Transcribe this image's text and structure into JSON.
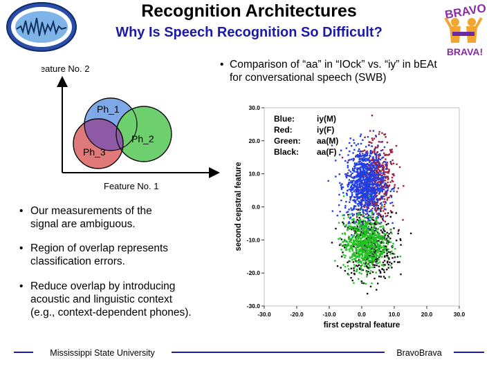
{
  "slide": {
    "title": "Recognition Architectures",
    "subtitle": "Why Is Speech Recognition So Difficult?",
    "logo_right_top": "BRAVO",
    "logo_right_bottom": "BRAVA!"
  },
  "venn": {
    "y_axis_label": "Feature No. 2",
    "x_axis_label": "Feature No. 1",
    "circles": [
      {
        "label": "Ph_1",
        "color": "#7fa8e6"
      },
      {
        "label": "Ph_2",
        "color": "#6dcf6d"
      },
      {
        "label": "Ph_3",
        "color": "#e07a7a"
      }
    ],
    "overlap_color": "#8e5aa6"
  },
  "bullets": [
    [
      "Our measurements of the",
      "signal are ambiguous."
    ],
    [
      "Region of overlap represents",
      "classification errors."
    ],
    [
      "Reduce overlap by introducing",
      "acoustic and linguistic context",
      "(e.g., context-dependent phones)."
    ]
  ],
  "comparison": [
    "Comparison of “aa” in “IOck” vs. “iy” in bEAt",
    "for conversational speech (SWB)"
  ],
  "chart_data": {
    "type": "scatter",
    "xlabel": "first cepstral feature",
    "ylabel": "second cepstral feature",
    "xlim": [
      -30,
      30
    ],
    "ylim": [
      -30,
      30
    ],
    "xticks": [
      "-30.0",
      "-20.0",
      "-10.0",
      "0.0",
      "10.0",
      "20.0",
      "30.0"
    ],
    "yticks": [
      "30.0",
      "20.0",
      "10.0",
      "0.0",
      "-10.0",
      "-20.0",
      "-30.0"
    ],
    "legend": {
      "placement": "top-left",
      "entries": [
        {
          "color_word": "Blue:",
          "label": "iy(M)"
        },
        {
          "color_word": "Red:",
          "label": "iy(F)"
        },
        {
          "color_word": "Green:",
          "label": "aa(M)"
        },
        {
          "color_word": "Black:",
          "label": "aa(F)"
        }
      ]
    },
    "series": [
      {
        "name": "iy(M)",
        "color": "#1f3fe6",
        "center": [
          1.0,
          7.0
        ],
        "spread": [
          3.0,
          5.5
        ],
        "count": 900
      },
      {
        "name": "iy(F)",
        "color": "#9c1f3a",
        "center": [
          4.5,
          8.0
        ],
        "spread": [
          3.0,
          6.0
        ],
        "count": 500
      },
      {
        "name": "aa(M)",
        "color": "#22c422",
        "center": [
          1.0,
          -11.0
        ],
        "spread": [
          3.3,
          4.0
        ],
        "count": 700
      },
      {
        "name": "aa(F)",
        "color": "#111111",
        "center": [
          2.5,
          -12.0
        ],
        "spread": [
          4.0,
          5.0
        ],
        "count": 450
      }
    ]
  },
  "footer": {
    "left": "Mississippi State University",
    "right": "BravoBrava"
  }
}
